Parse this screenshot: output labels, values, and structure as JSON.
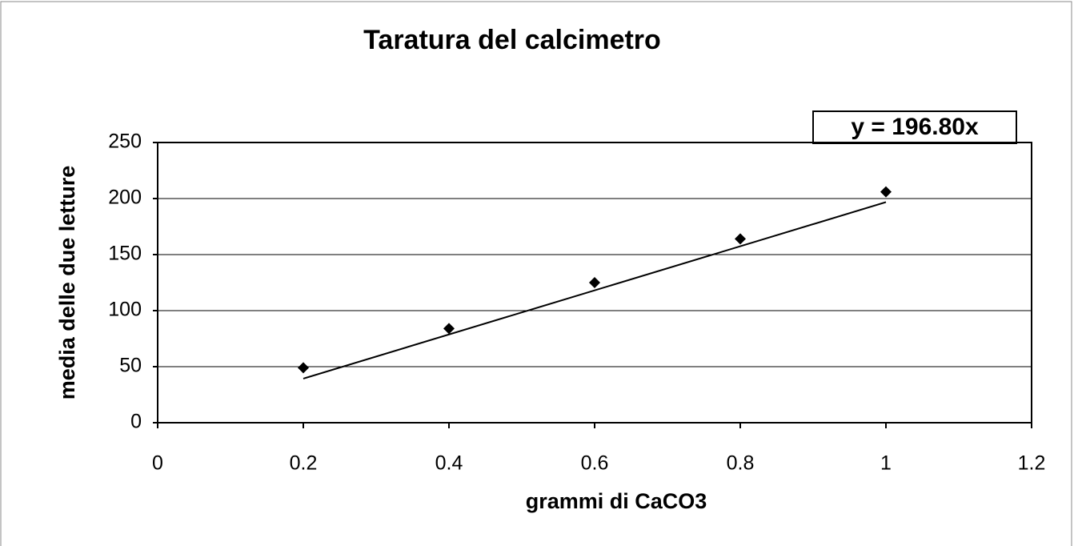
{
  "chart_data": {
    "type": "scatter",
    "title": "Taratura del calcimetro",
    "xlabel": "grammi di CaCO3",
    "ylabel": "media delle due letture",
    "x": [
      0.2,
      0.4,
      0.6,
      0.8,
      1
    ],
    "values": [
      49,
      84,
      125,
      164,
      206
    ],
    "color": "#000000",
    "trendline": {
      "slope": 196.8,
      "label": "y = 196.80x"
    },
    "xlim": [
      0,
      1.2
    ],
    "xticks": [
      0,
      0.2,
      0.4,
      0.6,
      0.8,
      1,
      1.2
    ],
    "ylim": [
      0,
      250
    ],
    "yticks": [
      0,
      50,
      100,
      150,
      200,
      250
    ],
    "grid": true
  }
}
